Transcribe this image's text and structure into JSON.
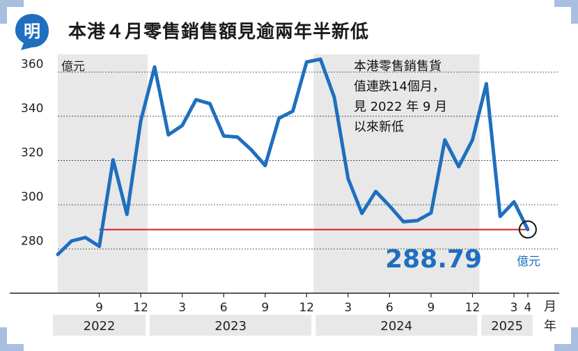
{
  "header": {
    "logo_char": "明",
    "title": "本港４月零售銷售額見逾兩年半新低"
  },
  "colors": {
    "line": "#1f6fbf",
    "reference": "#d0212a",
    "frame": "#a9bfe0",
    "shade": "#e8e8e8",
    "grid": "#333333"
  },
  "annotation": {
    "lines": [
      "本港零售銷售貨",
      "值連跌14個月，",
      "見 2022 年 9 月",
      "以來新低"
    ]
  },
  "last_value": {
    "value": "288.79",
    "unit": "億元"
  },
  "chart_data": {
    "type": "line",
    "title": "本港４月零售銷售額見逾兩年半新低",
    "ylabel": "億元",
    "xlabel": "月 年",
    "ylim": [
      260,
      368
    ],
    "yticks": [
      280,
      300,
      320,
      340,
      360
    ],
    "grid": true,
    "x": [
      "2022-06",
      "2022-07",
      "2022-08",
      "2022-09",
      "2022-10",
      "2022-11",
      "2022-12",
      "2023-01",
      "2023-02",
      "2023-03",
      "2023-04",
      "2023-05",
      "2023-06",
      "2023-07",
      "2023-08",
      "2023-09",
      "2023-10",
      "2023-11",
      "2023-12",
      "2024-01",
      "2024-02",
      "2024-03",
      "2024-04",
      "2024-05",
      "2024-06",
      "2024-07",
      "2024-08",
      "2024-09",
      "2024-10",
      "2024-11",
      "2024-12",
      "2025-01",
      "2025-02",
      "2025-03",
      "2025-04"
    ],
    "series": [
      {
        "values": [
          277.5,
          283.6,
          285.2,
          281.2,
          320.3,
          295.6,
          337.9,
          362.3,
          331.6,
          335.8,
          347.5,
          345.7,
          331.1,
          330.6,
          324.8,
          317.7,
          339.1,
          342.3,
          364.5,
          365.8,
          348.6,
          311.8,
          296.1,
          306.0,
          299.5,
          292.3,
          292.8,
          296.3,
          329.3,
          317.2,
          329.3,
          354.7,
          294.7,
          301.3,
          288.8
        ]
      }
    ],
    "reference_value": 288.79,
    "tick_labels": [
      "9",
      "12",
      "3",
      "6",
      "9",
      "12",
      "3",
      "6",
      "9",
      "12",
      "3",
      "4"
    ],
    "tick_index": [
      3,
      6,
      9,
      12,
      15,
      18,
      21,
      24,
      27,
      30,
      33,
      34
    ],
    "year_labels": [
      "2022",
      "2023",
      "2024",
      "2025"
    ],
    "year_ranges": [
      [
        0,
        6
      ],
      [
        7,
        18
      ],
      [
        19,
        30
      ],
      [
        31,
        34
      ]
    ],
    "month_unit": "月",
    "year_unit": "年"
  }
}
